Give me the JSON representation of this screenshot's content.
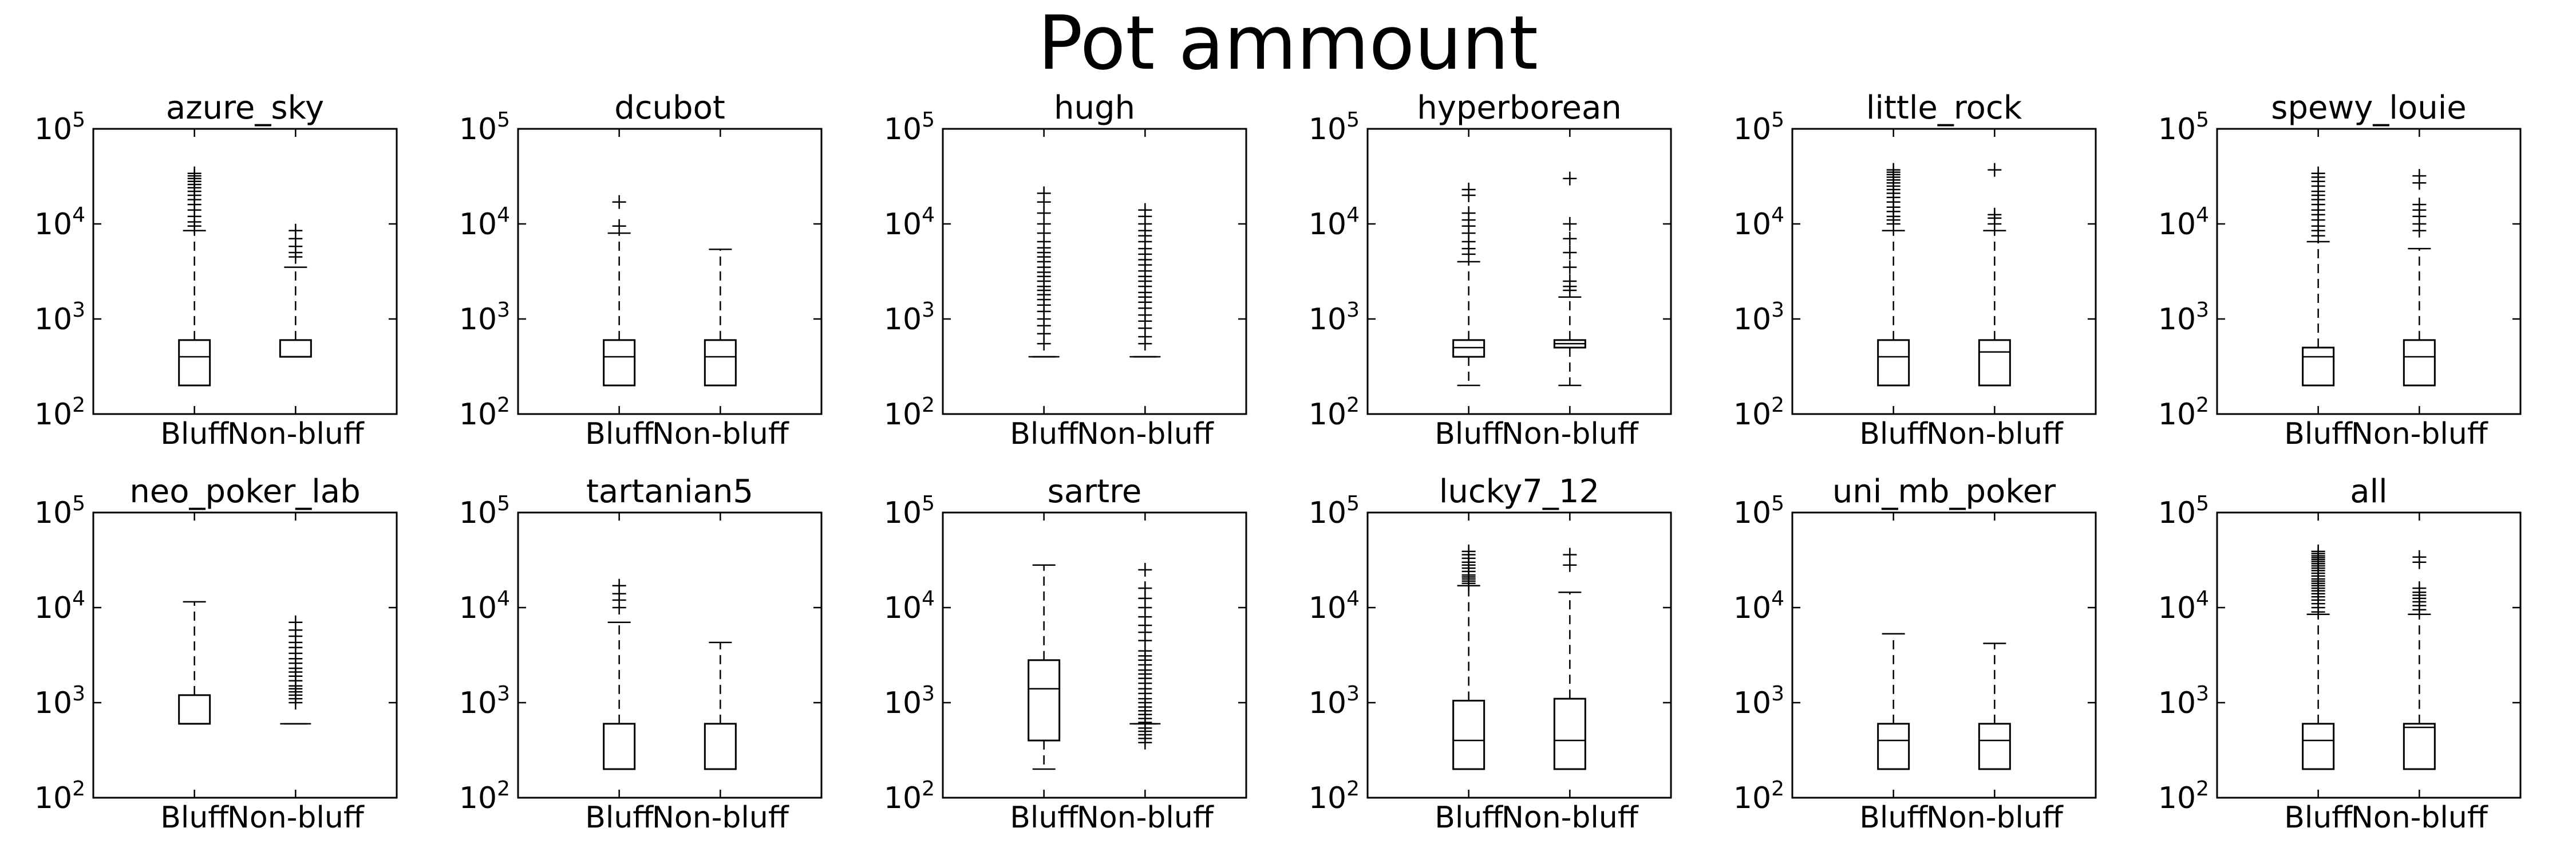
{
  "figure": {
    "title": "Pot ammount"
  },
  "chart_data": [
    {
      "type": "box",
      "title": "azure_sky",
      "yscale": "log",
      "ylim": [
        100,
        100000
      ],
      "categories": [
        "Bluff",
        "Non-bluff"
      ],
      "boxes": [
        {
          "label": "Bluff",
          "whislo": 200,
          "q1": 200,
          "med": 400,
          "q3": 600,
          "whishi": 8500,
          "fliers": [
            9500,
            10500,
            12000,
            14000,
            16000,
            18000,
            20000,
            22000,
            24000,
            26000,
            28000,
            30000,
            32000,
            34000
          ]
        },
        {
          "label": "Non-bluff",
          "whislo": 400,
          "q1": 400,
          "med": 400,
          "q3": 600,
          "whishi": 3500,
          "fliers": [
            4500,
            5000,
            5800,
            7000,
            8500
          ]
        }
      ]
    },
    {
      "type": "box",
      "title": "dcubot",
      "yscale": "log",
      "ylim": [
        100,
        100000
      ],
      "categories": [
        "Bluff",
        "Non-bluff"
      ],
      "boxes": [
        {
          "label": "Bluff",
          "whislo": 200,
          "q1": 200,
          "med": 400,
          "q3": 600,
          "whishi": 8000,
          "fliers": [
            9500,
            17000
          ]
        },
        {
          "label": "Non-bluff",
          "whislo": 200,
          "q1": 200,
          "med": 400,
          "q3": 600,
          "whishi": 5400,
          "fliers": []
        }
      ]
    },
    {
      "type": "box",
      "title": "hugh",
      "yscale": "log",
      "ylim": [
        100,
        100000
      ],
      "categories": [
        "Bluff",
        "Non-bluff"
      ],
      "boxes": [
        {
          "label": "Bluff",
          "whislo": 400,
          "q1": 400,
          "med": 400,
          "q3": 400,
          "whishi": 400,
          "fliers": [
            550,
            700,
            850,
            1000,
            1200,
            1400,
            1600,
            1800,
            2000,
            2200,
            2500,
            2800,
            3100,
            3500,
            4000,
            4500,
            5000,
            5600,
            6500,
            8000,
            10000,
            13000,
            17000,
            21000
          ]
        },
        {
          "label": "Non-bluff",
          "whislo": 400,
          "q1": 400,
          "med": 400,
          "q3": 400,
          "whishi": 400,
          "fliers": [
            550,
            650,
            800,
            950,
            1100,
            1300,
            1500,
            1700,
            1900,
            2200,
            2500,
            2800,
            3200,
            3700,
            4200,
            4800,
            5500,
            6500,
            7500,
            8500,
            10000,
            12000,
            14000
          ]
        }
      ]
    },
    {
      "type": "box",
      "title": "hyperborean",
      "yscale": "log",
      "ylim": [
        100,
        100000
      ],
      "categories": [
        "Bluff",
        "Non-bluff"
      ],
      "boxes": [
        {
          "label": "Bluff",
          "whislo": 200,
          "q1": 400,
          "med": 500,
          "q3": 600,
          "whishi": 4000,
          "fliers": [
            4800,
            5500,
            6500,
            8000,
            9500,
            11000,
            13000,
            20000,
            23000
          ]
        },
        {
          "label": "Non-bluff",
          "whislo": 200,
          "q1": 500,
          "med": 550,
          "q3": 600,
          "whishi": 1700,
          "fliers": [
            2000,
            2200,
            2500,
            3500,
            5000,
            7000,
            10000,
            30000
          ]
        }
      ]
    },
    {
      "type": "box",
      "title": "little_rock",
      "yscale": "log",
      "ylim": [
        100,
        100000
      ],
      "categories": [
        "Bluff",
        "Non-bluff"
      ],
      "boxes": [
        {
          "label": "Bluff",
          "whislo": 200,
          "q1": 200,
          "med": 400,
          "q3": 600,
          "whishi": 8500,
          "fliers": [
            10000,
            11000,
            12000,
            13500,
            15000,
            17000,
            19000,
            21000,
            23000,
            25000,
            27000,
            29000,
            31000,
            33000,
            35000,
            37000
          ]
        },
        {
          "label": "Non-bluff",
          "whislo": 200,
          "q1": 200,
          "med": 450,
          "q3": 600,
          "whishi": 8500,
          "fliers": [
            10000,
            11500,
            12500,
            37000
          ]
        }
      ]
    },
    {
      "type": "box",
      "title": "spewy_louie",
      "yscale": "log",
      "ylim": [
        100,
        100000
      ],
      "categories": [
        "Bluff",
        "Non-bluff"
      ],
      "boxes": [
        {
          "label": "Bluff",
          "whislo": 200,
          "q1": 200,
          "med": 400,
          "q3": 500,
          "whishi": 6500,
          "fliers": [
            7500,
            8500,
            9500,
            11000,
            12500,
            14000,
            16000,
            18000,
            20000,
            22000,
            25000,
            28000,
            31000,
            34000
          ]
        },
        {
          "label": "Non-bluff",
          "whislo": 200,
          "q1": 200,
          "med": 400,
          "q3": 600,
          "whishi": 5500,
          "fliers": [
            8500,
            10000,
            12000,
            14000,
            16000,
            27000,
            32000
          ]
        }
      ]
    },
    {
      "type": "box",
      "title": "neo_poker_lab",
      "yscale": "log",
      "ylim": [
        100,
        100000
      ],
      "categories": [
        "Bluff",
        "Non-bluff"
      ],
      "boxes": [
        {
          "label": "Bluff",
          "whislo": 600,
          "q1": 600,
          "med": 600,
          "q3": 1200,
          "whishi": 11500,
          "fliers": []
        },
        {
          "label": "Non-bluff",
          "whislo": 600,
          "q1": 600,
          "med": 600,
          "q3": 600,
          "whishi": 600,
          "fliers": [
            1000,
            1100,
            1200,
            1300,
            1400,
            1500,
            1700,
            1900,
            2100,
            2300,
            2600,
            2900,
            3300,
            3800,
            4300,
            5000,
            5800,
            7000
          ]
        }
      ]
    },
    {
      "type": "box",
      "title": "tartanian5",
      "yscale": "log",
      "ylim": [
        100,
        100000
      ],
      "categories": [
        "Bluff",
        "Non-bluff"
      ],
      "boxes": [
        {
          "label": "Bluff",
          "whislo": 200,
          "q1": 200,
          "med": 200,
          "q3": 600,
          "whishi": 7000,
          "fliers": [
            10000,
            12000,
            14000,
            17000
          ]
        },
        {
          "label": "Non-bluff",
          "whislo": 200,
          "q1": 200,
          "med": 200,
          "q3": 600,
          "whishi": 4300,
          "fliers": []
        }
      ]
    },
    {
      "type": "box",
      "title": "sartre",
      "yscale": "log",
      "ylim": [
        100,
        100000
      ],
      "categories": [
        "Bluff",
        "Non-bluff"
      ],
      "boxes": [
        {
          "label": "Bluff",
          "whislo": 200,
          "q1": 400,
          "med": 1400,
          "q3": 2800,
          "whishi": 28000,
          "fliers": []
        },
        {
          "label": "Non-bluff",
          "whislo": 600,
          "q1": 600,
          "med": 600,
          "q3": 600,
          "whishi": 600,
          "fliers": [
            380,
            420,
            460,
            500,
            540,
            620,
            680,
            750,
            820,
            900,
            1000,
            1100,
            1250,
            1400,
            1600,
            1800,
            2000,
            2200,
            2500,
            2800,
            3100,
            3500,
            4500,
            5500,
            6500,
            8000,
            10000,
            12500,
            16000,
            25000
          ]
        }
      ]
    },
    {
      "type": "box",
      "title": "lucky7_12",
      "yscale": "log",
      "ylim": [
        100,
        100000
      ],
      "categories": [
        "Bluff",
        "Non-bluff"
      ],
      "boxes": [
        {
          "label": "Bluff",
          "whislo": 200,
          "q1": 200,
          "med": 400,
          "q3": 1050,
          "whishi": 17000,
          "fliers": [
            18000,
            19000,
            20000,
            21000,
            22000,
            24000,
            26000,
            28000,
            30000,
            33000,
            36000,
            39000
          ]
        },
        {
          "label": "Non-bluff",
          "whislo": 200,
          "q1": 200,
          "med": 400,
          "q3": 1100,
          "whishi": 14500,
          "fliers": [
            28000,
            36000
          ]
        }
      ]
    },
    {
      "type": "box",
      "title": "uni_mb_poker",
      "yscale": "log",
      "ylim": [
        100,
        100000
      ],
      "categories": [
        "Bluff",
        "Non-bluff"
      ],
      "boxes": [
        {
          "label": "Bluff",
          "whislo": 200,
          "q1": 200,
          "med": 400,
          "q3": 600,
          "whishi": 5300,
          "fliers": []
        },
        {
          "label": "Non-bluff",
          "whislo": 200,
          "q1": 200,
          "med": 400,
          "q3": 600,
          "whishi": 4200,
          "fliers": []
        }
      ]
    },
    {
      "type": "box",
      "title": "all",
      "yscale": "log",
      "ylim": [
        100,
        100000
      ],
      "categories": [
        "Bluff",
        "Non-bluff"
      ],
      "boxes": [
        {
          "label": "Bluff",
          "whislo": 200,
          "q1": 200,
          "med": 400,
          "q3": 600,
          "whishi": 8500,
          "fliers": [
            9000,
            10000,
            11000,
            12000,
            13000,
            14000,
            15000,
            16000,
            17000,
            18000,
            19000,
            20000,
            21500,
            23000,
            24500,
            26000,
            27500,
            29000,
            30500,
            32000,
            33500,
            35000,
            37000,
            39000
          ]
        },
        {
          "label": "Non-bluff",
          "whislo": 200,
          "q1": 200,
          "med": 550,
          "q3": 600,
          "whishi": 8500,
          "fliers": [
            9500,
            10500,
            11500,
            12500,
            13500,
            14500,
            16000,
            30000,
            34000
          ]
        }
      ]
    }
  ]
}
